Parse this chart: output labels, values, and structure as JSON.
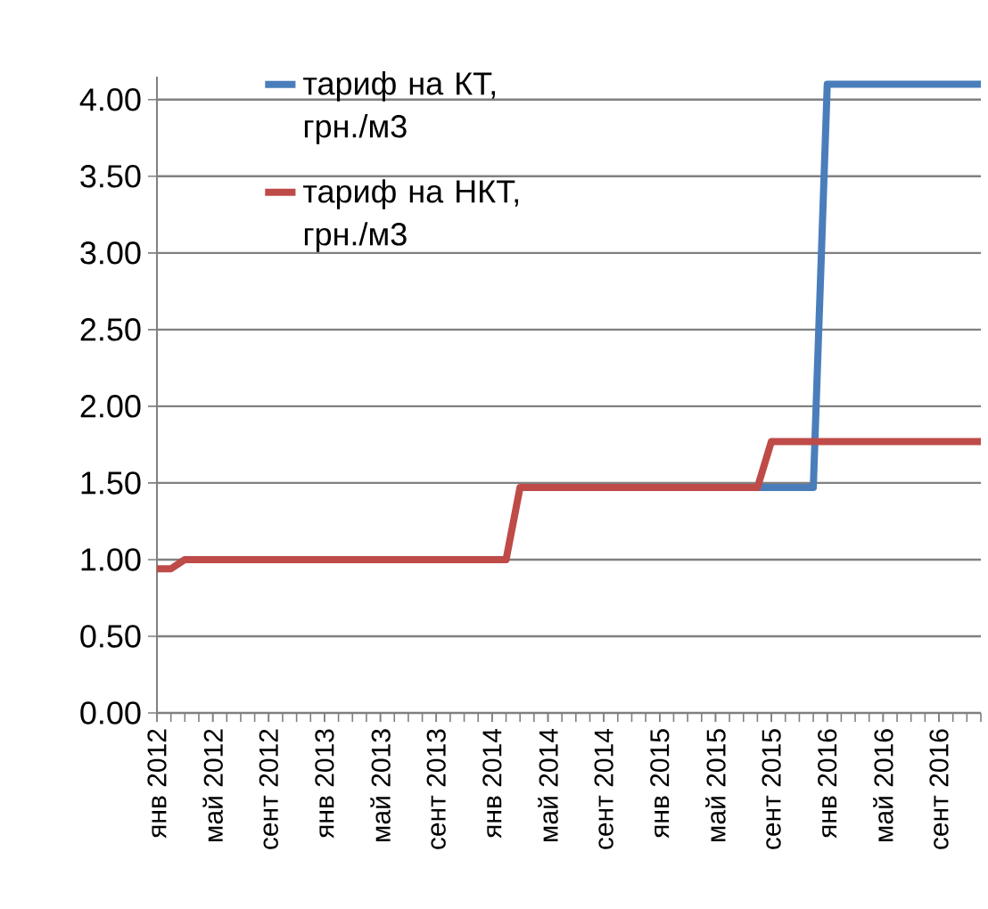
{
  "chart_data": {
    "type": "line",
    "categories": [
      "янв 2012",
      null,
      null,
      null,
      "май 2012",
      null,
      null,
      null,
      "сент 2012",
      null,
      null,
      null,
      "янв 2013",
      null,
      null,
      null,
      "май 2013",
      null,
      null,
      null,
      "сент 2013",
      null,
      null,
      null,
      "янв 2014",
      null,
      null,
      null,
      "май 2014",
      null,
      null,
      null,
      "сент 2014",
      null,
      null,
      null,
      "янв 2015",
      null,
      null,
      null,
      "май 2015",
      null,
      null,
      null,
      "сент 2015",
      null,
      null,
      null,
      "янв 2016",
      null,
      null,
      null,
      "май 2016",
      null,
      null,
      null,
      "сент 2016",
      null,
      null,
      null
    ],
    "series": [
      {
        "name": "тариф на КТ, грн./м3",
        "color": "#4a7ebb",
        "values": [
          null,
          null,
          null,
          null,
          null,
          null,
          null,
          null,
          null,
          null,
          null,
          null,
          null,
          null,
          null,
          null,
          null,
          null,
          null,
          null,
          null,
          null,
          null,
          null,
          null,
          null,
          null,
          null,
          null,
          null,
          null,
          null,
          null,
          null,
          null,
          null,
          null,
          null,
          null,
          null,
          null,
          null,
          null,
          1.47,
          1.47,
          1.47,
          1.47,
          1.47,
          4.1,
          4.1,
          4.1,
          4.1,
          4.1,
          4.1,
          4.1,
          4.1,
          4.1,
          4.1,
          4.1,
          4.1
        ]
      },
      {
        "name": "тариф на НКТ, грн./м3",
        "color": "#be4b48",
        "values": [
          0.94,
          0.94,
          1.0,
          1.0,
          1.0,
          1.0,
          1.0,
          1.0,
          1.0,
          1.0,
          1.0,
          1.0,
          1.0,
          1.0,
          1.0,
          1.0,
          1.0,
          1.0,
          1.0,
          1.0,
          1.0,
          1.0,
          1.0,
          1.0,
          1.0,
          1.0,
          1.47,
          1.47,
          1.47,
          1.47,
          1.47,
          1.47,
          1.47,
          1.47,
          1.47,
          1.47,
          1.47,
          1.47,
          1.47,
          1.47,
          1.47,
          1.47,
          1.47,
          1.47,
          1.77,
          1.77,
          1.77,
          1.77,
          1.77,
          1.77,
          1.77,
          1.77,
          1.77,
          1.77,
          1.77,
          1.77,
          1.77,
          1.77,
          1.77,
          1.77
        ]
      }
    ],
    "ylim": [
      0,
      4.15
    ],
    "yticks": [
      {
        "value": 0,
        "label": "0.00"
      },
      {
        "value": 0.5,
        "label": "0.50"
      },
      {
        "value": 1,
        "label": "1.00"
      },
      {
        "value": 1.5,
        "label": "1.50"
      },
      {
        "value": 2,
        "label": "2.00"
      },
      {
        "value": 2.5,
        "label": "2.50"
      },
      {
        "value": 3,
        "label": "3.00"
      },
      {
        "value": 3.5,
        "label": "3.50"
      },
      {
        "value": 4,
        "label": "4.00"
      }
    ],
    "grid": "y",
    "legend": "top",
    "marker": "none",
    "line_style": "solid"
  }
}
